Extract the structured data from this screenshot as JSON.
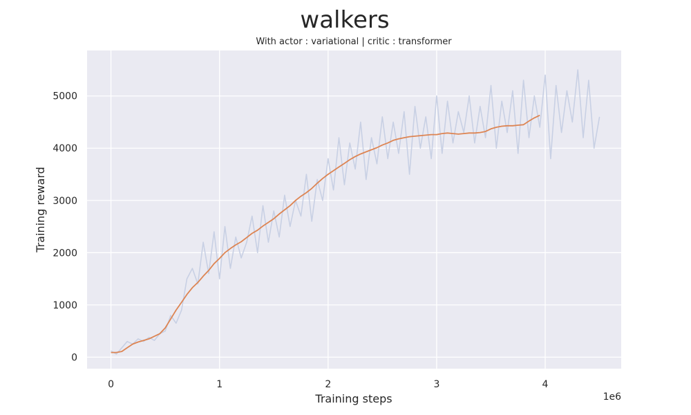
{
  "chart_data": {
    "type": "line",
    "title": "walkers",
    "subtitle": "With actor : variational | critic : transformer",
    "xlabel": "Training steps",
    "ylabel": "Training reward",
    "x_offset_label": "1e6",
    "xlim": [
      -0.22,
      4.7
    ],
    "ylim": [
      -220,
      5870
    ],
    "x_ticks": [
      0,
      1,
      2,
      3,
      4
    ],
    "x_tick_labels": [
      "0",
      "1",
      "2",
      "3",
      "4"
    ],
    "y_ticks": [
      0,
      1000,
      2000,
      3000,
      4000,
      5000
    ],
    "y_tick_labels": [
      "0",
      "1000",
      "2000",
      "3000",
      "4000",
      "5000"
    ],
    "grid": true,
    "background": "#eaeaf2",
    "series": [
      {
        "role": "raw",
        "color": "#c8d0e4",
        "x": [
          0,
          0.05,
          0.1,
          0.15,
          0.2,
          0.25,
          0.3,
          0.35,
          0.4,
          0.45,
          0.5,
          0.55,
          0.6,
          0.65,
          0.7,
          0.75,
          0.8,
          0.85,
          0.9,
          0.95,
          1.0,
          1.05,
          1.1,
          1.15,
          1.2,
          1.25,
          1.3,
          1.35,
          1.4,
          1.45,
          1.5,
          1.55,
          1.6,
          1.65,
          1.7,
          1.75,
          1.8,
          1.85,
          1.9,
          1.95,
          2.0,
          2.05,
          2.1,
          2.15,
          2.2,
          2.25,
          2.3,
          2.35,
          2.4,
          2.45,
          2.5,
          2.55,
          2.6,
          2.65,
          2.7,
          2.75,
          2.8,
          2.85,
          2.9,
          2.95,
          3.0,
          3.05,
          3.1,
          3.15,
          3.2,
          3.25,
          3.3,
          3.35,
          3.4,
          3.45,
          3.5,
          3.55,
          3.6,
          3.65,
          3.7,
          3.75,
          3.8,
          3.85,
          3.9,
          3.95,
          4.0,
          4.05,
          4.1,
          4.15,
          4.2,
          4.25,
          4.3,
          4.35,
          4.4,
          4.45,
          4.5
        ],
        "y": [
          120,
          60,
          180,
          300,
          250,
          350,
          300,
          380,
          320,
          450,
          500,
          800,
          650,
          900,
          1500,
          1700,
          1400,
          2200,
          1600,
          2400,
          1500,
          2500,
          1700,
          2300,
          1900,
          2200,
          2700,
          2000,
          2900,
          2200,
          2800,
          2300,
          3100,
          2500,
          3000,
          2700,
          3500,
          2600,
          3400,
          3000,
          3800,
          3200,
          4200,
          3300,
          4100,
          3600,
          4500,
          3400,
          4200,
          3700,
          4600,
          3800,
          4500,
          3900,
          4700,
          3500,
          4800,
          4000,
          4600,
          3800,
          5000,
          3900,
          4900,
          4100,
          4700,
          4300,
          5000,
          4100,
          4800,
          4200,
          5200,
          4000,
          4900,
          4300,
          5100,
          3900,
          5300,
          4200,
          5000,
          4400,
          5400,
          3800,
          5200,
          4300,
          5100,
          4500,
          5500,
          4200,
          5300,
          4000,
          4600
        ]
      },
      {
        "role": "smoothed",
        "color": "#dd8452",
        "x": [
          0,
          0.05,
          0.1,
          0.15,
          0.2,
          0.25,
          0.3,
          0.35,
          0.4,
          0.45,
          0.5,
          0.55,
          0.6,
          0.65,
          0.7,
          0.75,
          0.8,
          0.85,
          0.9,
          0.95,
          1.0,
          1.05,
          1.1,
          1.15,
          1.2,
          1.25,
          1.3,
          1.35,
          1.4,
          1.45,
          1.5,
          1.55,
          1.6,
          1.65,
          1.7,
          1.75,
          1.8,
          1.85,
          1.9,
          1.95,
          2.0,
          2.05,
          2.1,
          2.15,
          2.2,
          2.25,
          2.3,
          2.35,
          2.4,
          2.45,
          2.5,
          2.55,
          2.6,
          2.65,
          2.7,
          2.75,
          2.8,
          2.85,
          2.9,
          2.95,
          3.0,
          3.05,
          3.1,
          3.15,
          3.2,
          3.25,
          3.3,
          3.35,
          3.4,
          3.45,
          3.5,
          3.55,
          3.6,
          3.65,
          3.7,
          3.75,
          3.8,
          3.85,
          3.9,
          3.95
        ],
        "y": [
          90,
          90,
          110,
          180,
          250,
          290,
          320,
          350,
          400,
          450,
          560,
          730,
          900,
          1050,
          1200,
          1330,
          1430,
          1550,
          1660,
          1790,
          1890,
          2000,
          2080,
          2150,
          2210,
          2290,
          2370,
          2430,
          2510,
          2580,
          2650,
          2740,
          2820,
          2900,
          3000,
          3080,
          3150,
          3230,
          3330,
          3420,
          3500,
          3570,
          3640,
          3710,
          3780,
          3840,
          3890,
          3930,
          3970,
          4010,
          4060,
          4100,
          4150,
          4180,
          4200,
          4220,
          4230,
          4240,
          4250,
          4260,
          4260,
          4280,
          4290,
          4280,
          4270,
          4280,
          4290,
          4290,
          4300,
          4320,
          4370,
          4400,
          4420,
          4430,
          4430,
          4440,
          4450,
          4520,
          4580,
          4630
        ]
      }
    ]
  }
}
